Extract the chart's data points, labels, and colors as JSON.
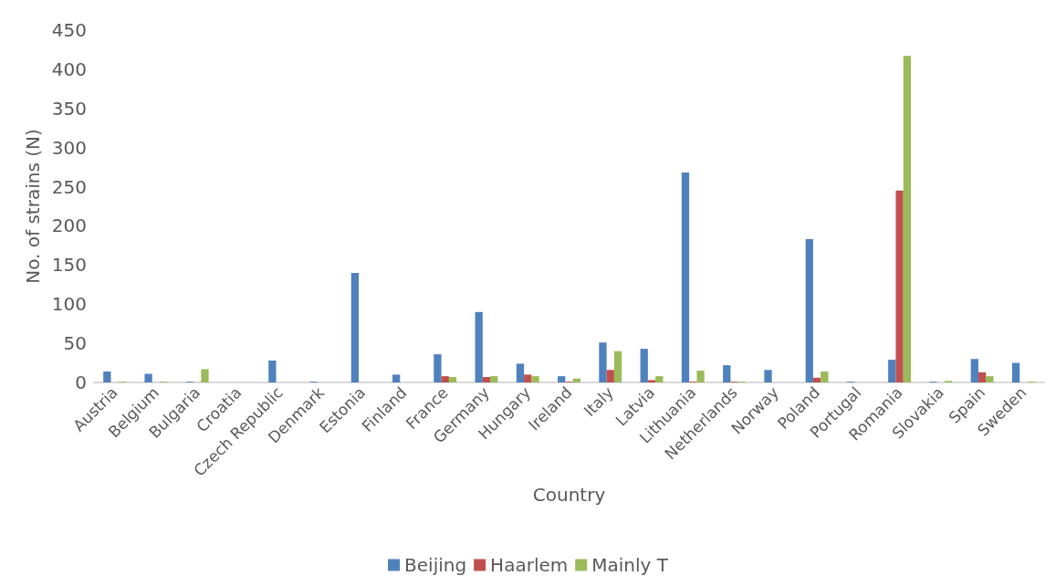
{
  "chart_data": {
    "type": "bar",
    "xlabel": "Country",
    "ylabel": "No. of strains (N)",
    "categories": [
      "Austria",
      "Belgium",
      "Bulgaria",
      "Croatia",
      "Czech Republic",
      "Denmark",
      "Estonia",
      "Finland",
      "France",
      "Germany",
      "Hungary",
      "Ireland",
      "Italy",
      "Latvia",
      "Lithuania",
      "Netherlands",
      "Norway",
      "Poland",
      "Portugal",
      "Romania",
      "Slovakia",
      "Spain",
      "Sweden"
    ],
    "series": [
      {
        "name": "Beijing",
        "color": "#4f81bd",
        "values": [
          14,
          11,
          1,
          0,
          28,
          1,
          140,
          10,
          36,
          90,
          24,
          8,
          51,
          43,
          268,
          22,
          16,
          183,
          1,
          29,
          1,
          30,
          25
        ]
      },
      {
        "name": "Haarlem",
        "color": "#c0504d",
        "values": [
          0,
          0,
          0,
          0,
          0,
          0,
          0,
          0,
          8,
          7,
          10,
          1,
          16,
          3,
          1,
          1,
          0,
          6,
          0,
          245,
          0,
          13,
          0
        ]
      },
      {
        "name": "Mainly T",
        "color": "#9bbb59",
        "values": [
          1,
          1,
          17,
          0,
          0,
          0,
          0,
          0,
          7,
          8,
          8,
          5,
          40,
          8,
          15,
          1,
          0,
          14,
          0,
          417,
          2,
          8,
          1
        ]
      }
    ],
    "ylim": [
      0,
      450
    ],
    "yticks": [
      0,
      50,
      100,
      150,
      200,
      250,
      300,
      350,
      400,
      450
    ],
    "grid": false,
    "legend": "bottom"
  }
}
